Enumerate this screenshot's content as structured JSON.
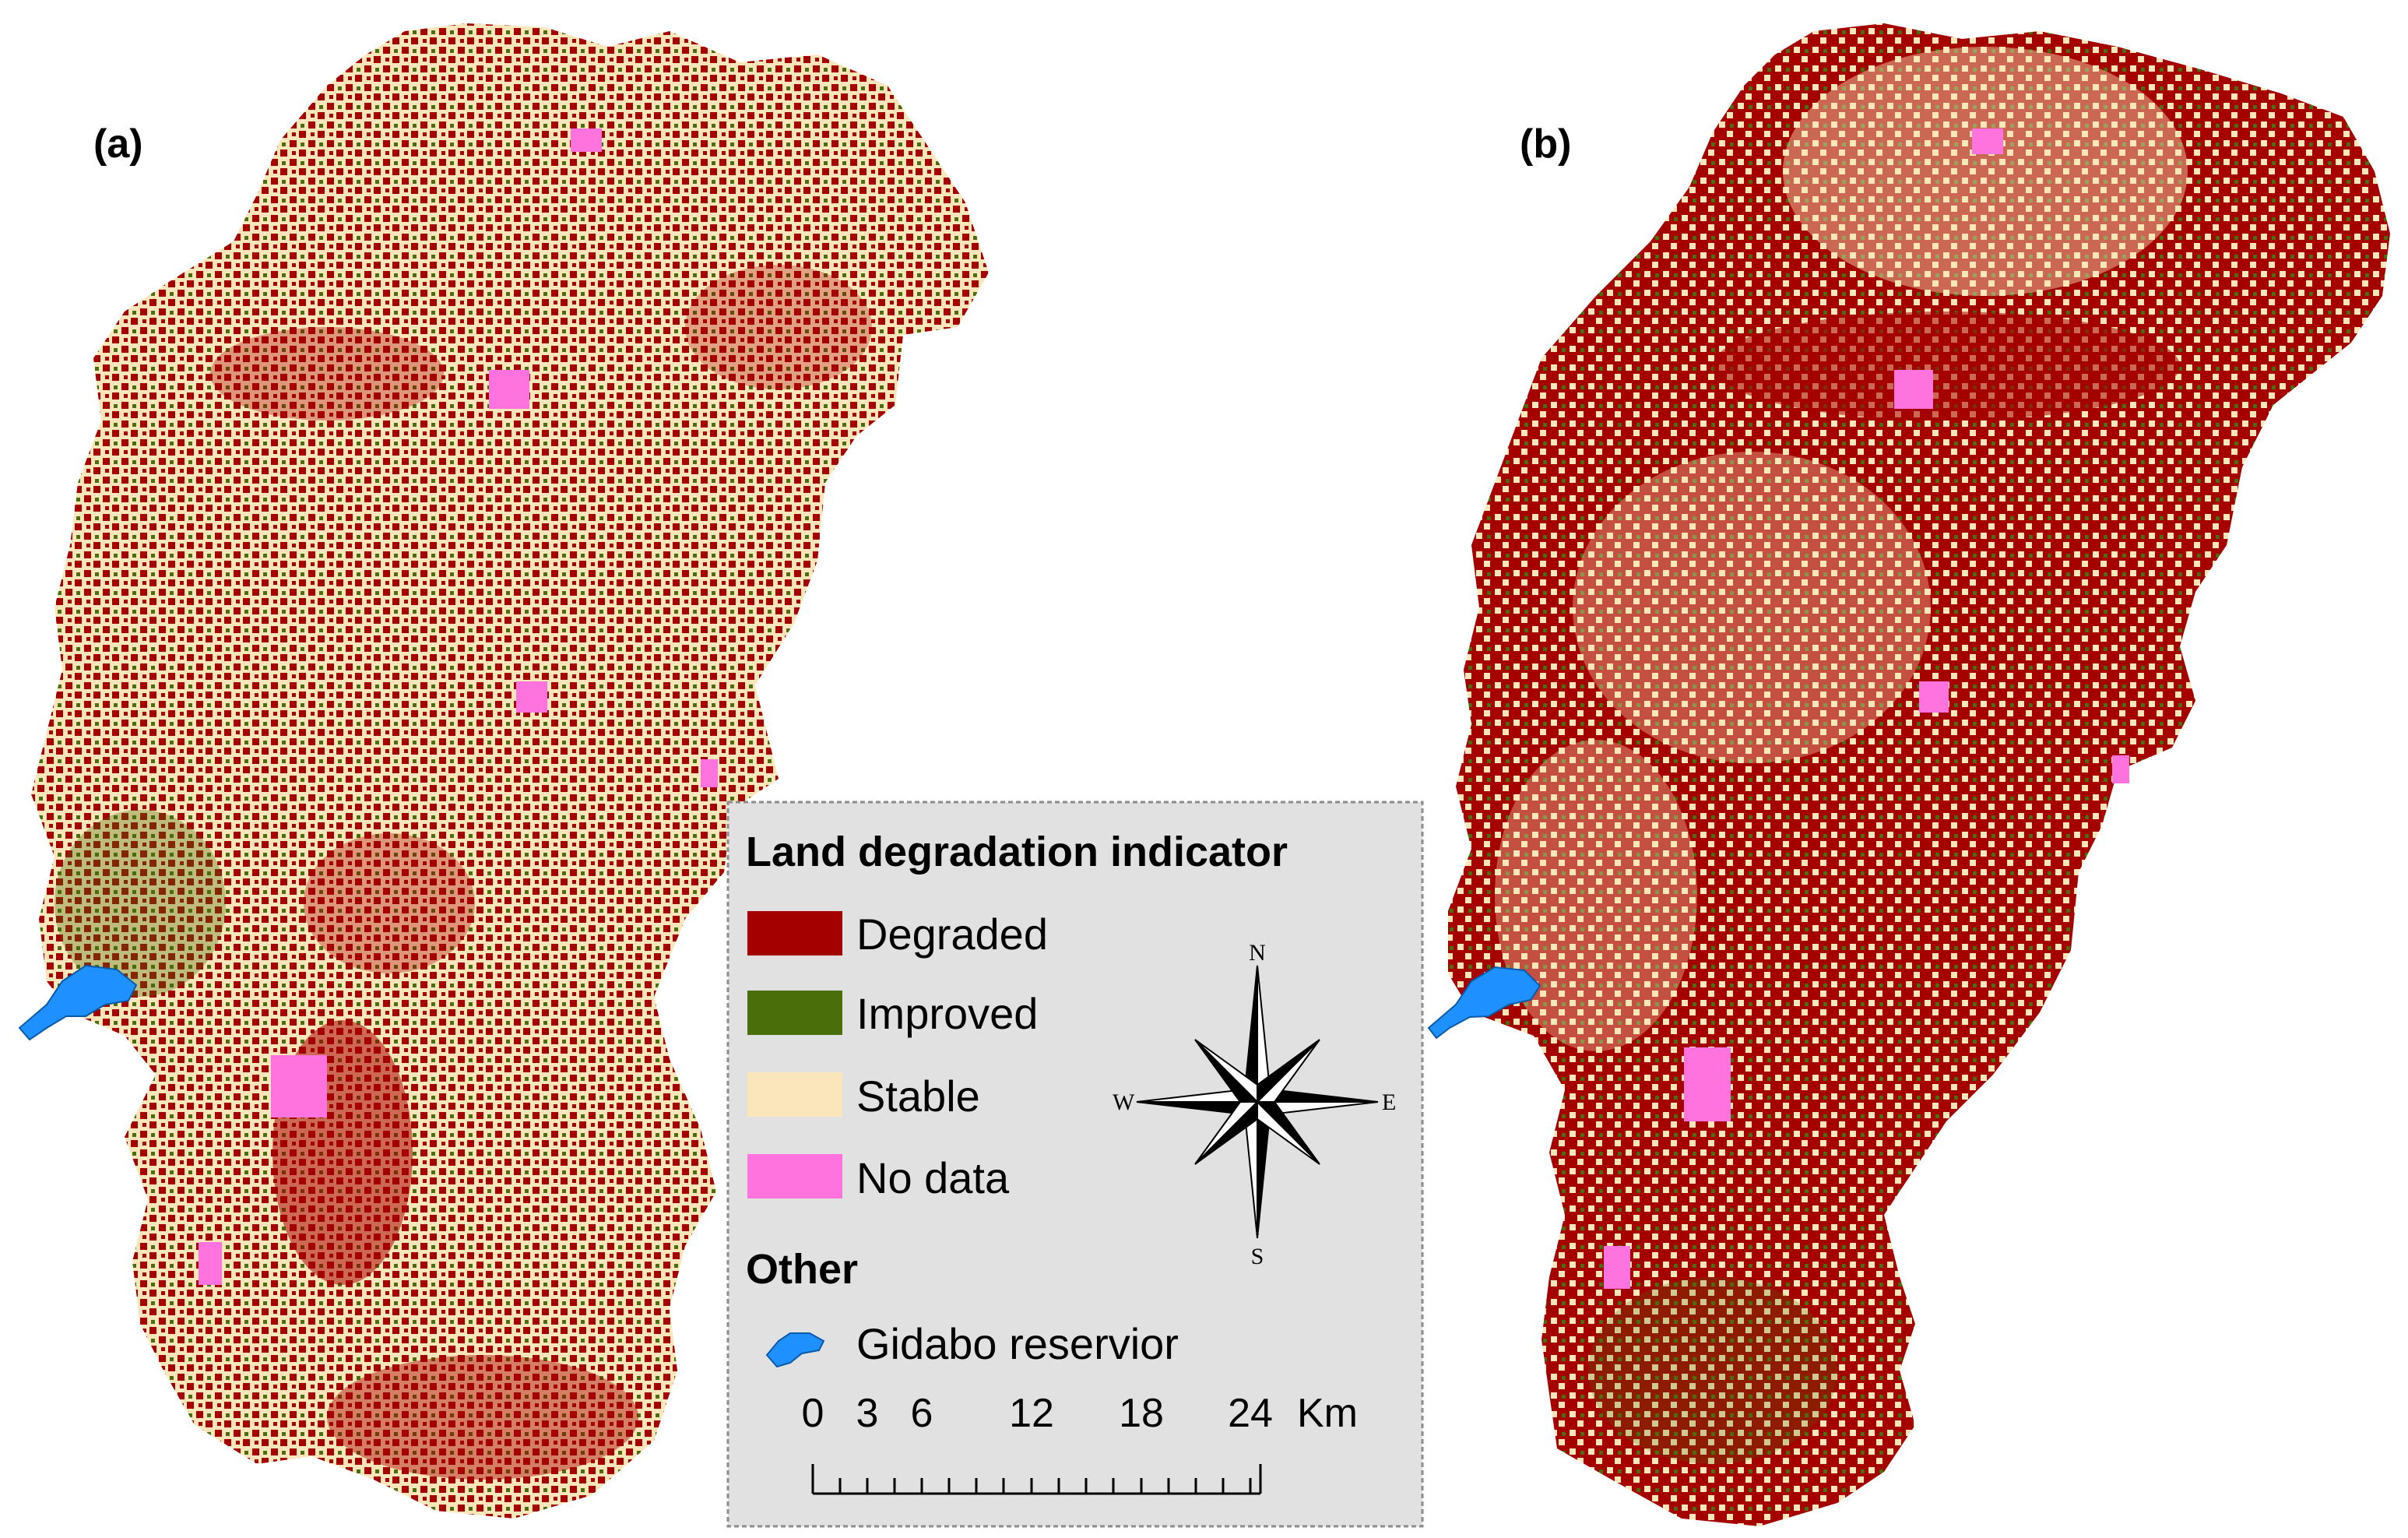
{
  "panels": [
    {
      "label": "(a)"
    },
    {
      "label": "(b)"
    }
  ],
  "legend": {
    "title": "Land degradation indicator",
    "classes": [
      {
        "label": "Degraded",
        "color": "#a50000"
      },
      {
        "label": "Improved",
        "color": "#4a6e0a"
      },
      {
        "label": "Stable",
        "color": "#fbe6bb"
      },
      {
        "label": "No data",
        "color": "#ff73df"
      }
    ],
    "other_title": "Other",
    "other_items": [
      {
        "label": "Gidabo reservior",
        "color": "#1e90ff"
      }
    ]
  },
  "north_arrow": {
    "n": "N",
    "s": "S",
    "e": "E",
    "w": "W"
  },
  "scale_bar": {
    "ticks": [
      "0",
      "3",
      "6",
      "12",
      "18",
      "24"
    ],
    "unit": "Km"
  },
  "colors": {
    "legend_bg": "#e1e1e1",
    "legend_border": "#8c8c8c"
  }
}
